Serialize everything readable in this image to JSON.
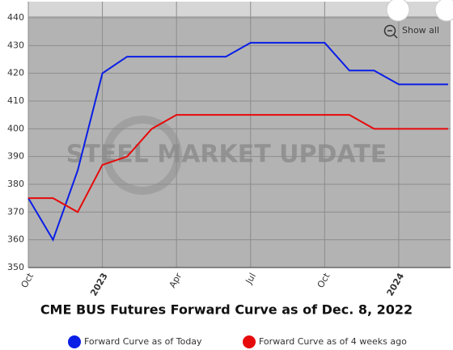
{
  "chart_data": {
    "type": "line",
    "title": "CME BUS Futures Forward Curve as of Dec. 8, 2022",
    "watermark": "STEEL MARKET UPDATE",
    "button": "Show all",
    "categories": [
      "Oct",
      null,
      null,
      "2023",
      null,
      null,
      "Apr",
      null,
      null,
      "Jul",
      null,
      null,
      "Oct",
      null,
      null,
      "2024",
      null,
      null
    ],
    "series": [
      {
        "name": "Forward Curve as of Today",
        "color": "#0a1ee6",
        "values": [
          375,
          360,
          385,
          420,
          426,
          426,
          426,
          426,
          426,
          431,
          431,
          431,
          431,
          421,
          421,
          416,
          416,
          416
        ]
      },
      {
        "name": "Forward Curve as of 4 weeks ago",
        "color": "#e60a0a",
        "values": [
          375,
          375,
          370,
          387,
          390,
          400,
          405,
          405,
          405,
          405,
          405,
          405,
          405,
          405,
          400,
          400,
          400,
          400
        ]
      }
    ],
    "ylim": [
      350,
      440
    ],
    "yticks": [
      350,
      360,
      370,
      380,
      390,
      400,
      410,
      420,
      430,
      440
    ],
    "grid": true,
    "legend": "bottom"
  }
}
